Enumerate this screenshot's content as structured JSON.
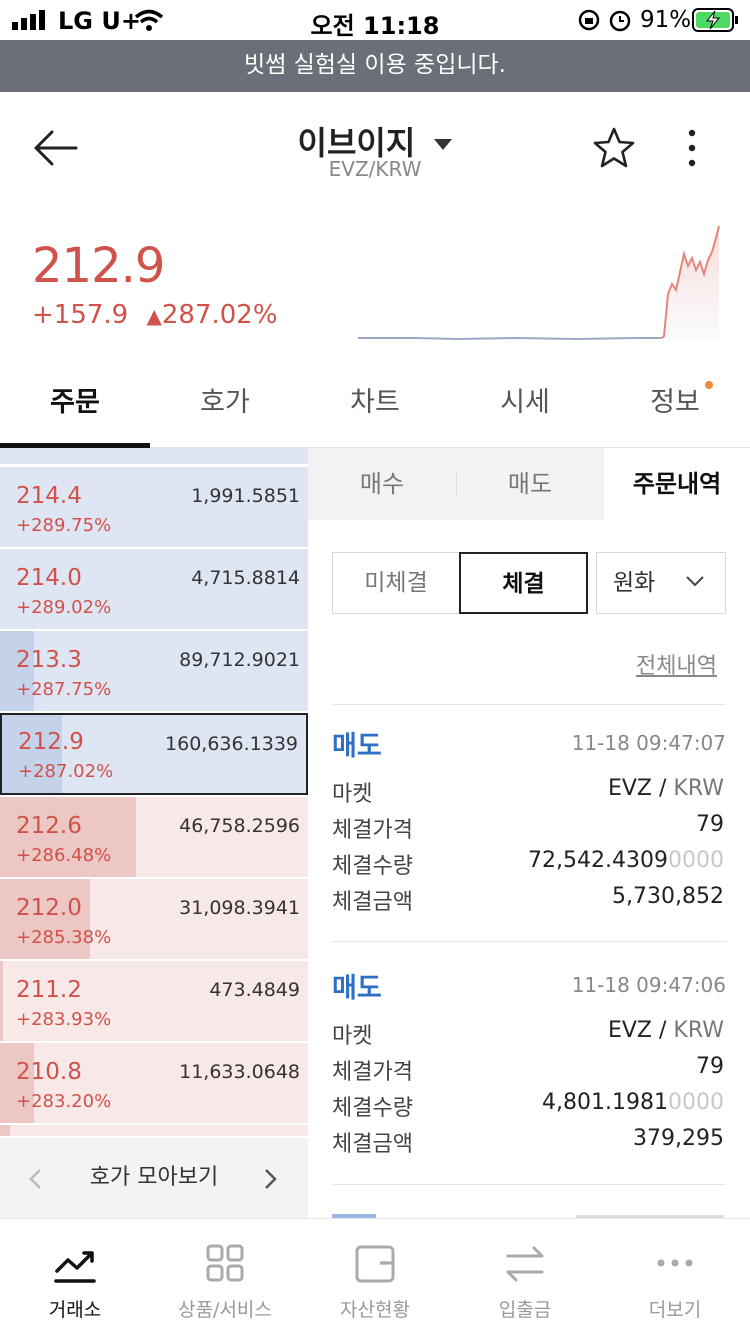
{
  "status": {
    "carrier": "LG U+",
    "time": "오전 11:18",
    "battery": "91%"
  },
  "banner": "빗썸 실험실 이용 중입니다.",
  "header": {
    "title": "이브이지",
    "subtitle": "EVZ/KRW"
  },
  "ticker": {
    "price": "212.9",
    "change": "+157.9",
    "percent": "287.02%"
  },
  "tabs": [
    "주문",
    "호가",
    "차트",
    "시세",
    "정보"
  ],
  "orderbook": {
    "rows": [
      {
        "price": "214.4",
        "pct": "+289.75%",
        "vol": "1,991.5851"
      },
      {
        "price": "214.0",
        "pct": "+289.02%",
        "vol": "4,715.8814"
      },
      {
        "price": "213.3",
        "pct": "+287.75%",
        "vol": "89,712.9021"
      },
      {
        "price": "212.9",
        "pct": "+287.02%",
        "vol": "160,636.1339"
      },
      {
        "price": "212.6",
        "pct": "+286.48%",
        "vol": "46,758.2596"
      },
      {
        "price": "212.0",
        "pct": "+285.38%",
        "vol": "31,098.3941"
      },
      {
        "price": "211.2",
        "pct": "+283.93%",
        "vol": "473.4849"
      },
      {
        "price": "210.8",
        "pct": "+283.20%",
        "vol": "11,633.0648"
      }
    ],
    "nav_label": "호가 모아보기"
  },
  "trade_tabs": [
    "매수",
    "매도",
    "주문내역"
  ],
  "filters": {
    "unfilled": "미체결",
    "filled": "체결",
    "currency": "원화"
  },
  "history_link": "전체내역",
  "labels": {
    "market": "마켓",
    "price": "체결가격",
    "qty": "체결수량",
    "amount": "체결금액"
  },
  "fills": [
    {
      "side": "매도",
      "time": "11-18 09:47:07",
      "market_base": "EVZ /",
      "market_quote": "KRW",
      "price": "79",
      "qty_main": "72,542.4309",
      "qty_trail": "0000",
      "amount": "5,730,852"
    },
    {
      "side": "매도",
      "time": "11-18 09:47:06",
      "market_base": "EVZ /",
      "market_quote": "KRW",
      "price": "79",
      "qty_main": "4,801.1981",
      "qty_trail": "0000",
      "amount": "379,295"
    }
  ],
  "bottom_nav": [
    "거래소",
    "상품/서비스",
    "자산현황",
    "입출금",
    "더보기"
  ],
  "colors": {
    "up": "#d0524a",
    "accent": "#2f6fc6",
    "banner": "#6b6f78"
  }
}
